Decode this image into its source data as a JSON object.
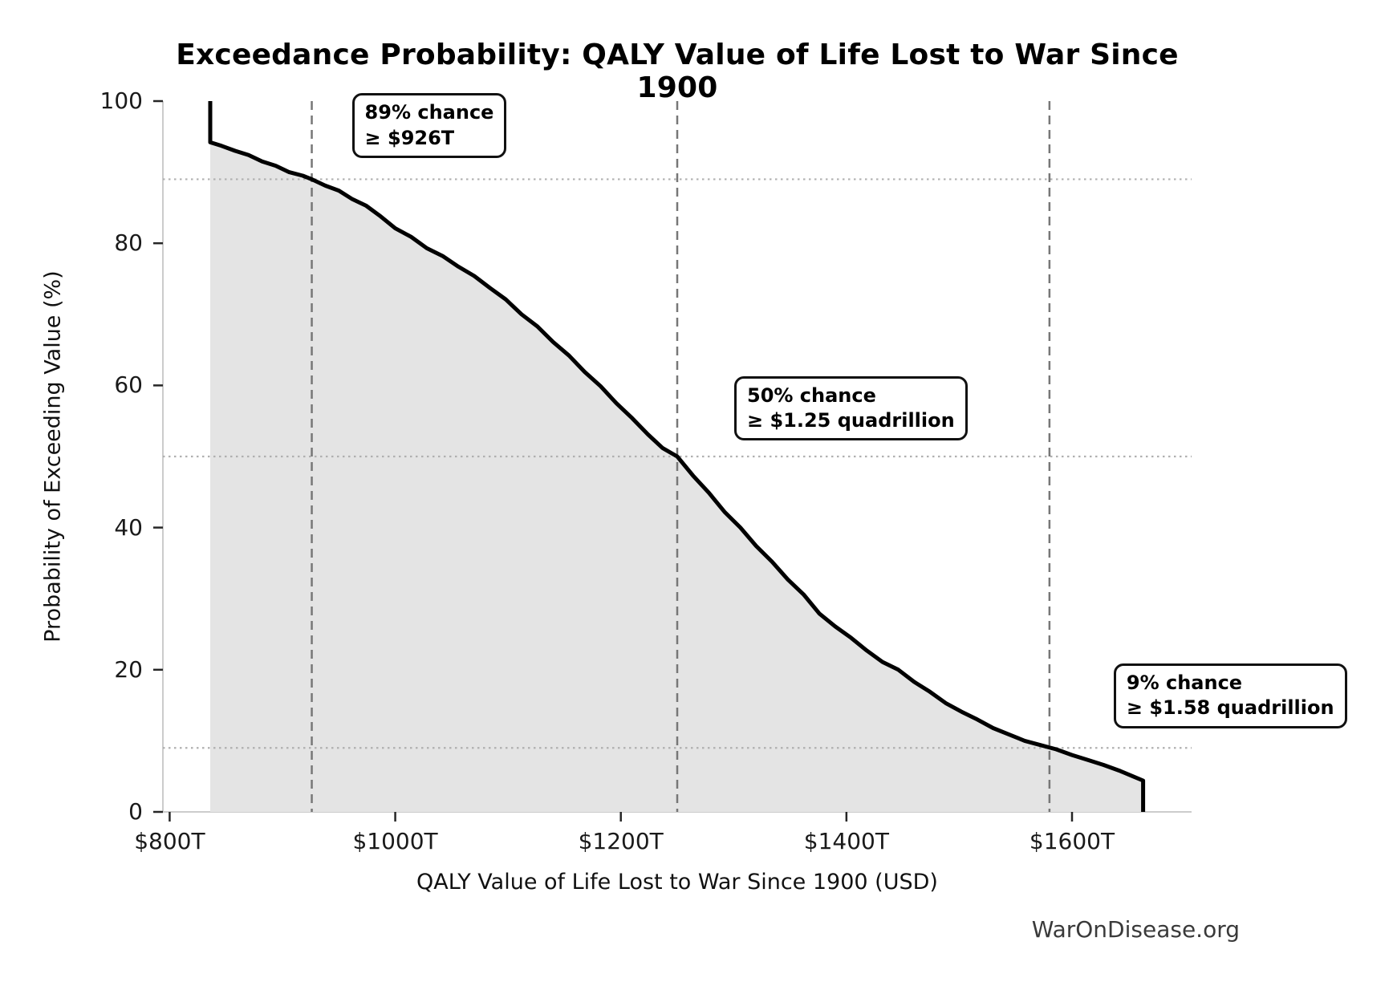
{
  "title": "Exceedance Probability: QALY Value of Life Lost to War Since 1900",
  "watermark": "WarOnDisease.org",
  "chart_data": {
    "type": "line",
    "title": "Exceedance Probability: QALY Value of Life Lost to War Since 1900",
    "xlabel": "QALY Value of Life Lost to War Since 1900 (USD)",
    "ylabel": "Probability of Exceeding Value (%)",
    "x_unit": "trillions of USD",
    "xlim": [
      794,
      1706
    ],
    "ylim": [
      0,
      100
    ],
    "grid": "off",
    "legend": "none",
    "x_ticks": [
      {
        "value": 800,
        "label": "$800T"
      },
      {
        "value": 1000,
        "label": "$1000T"
      },
      {
        "value": 1200,
        "label": "$1200T"
      },
      {
        "value": 1400,
        "label": "$1400T"
      },
      {
        "value": 1600,
        "label": "$1600T"
      }
    ],
    "y_ticks": [
      {
        "value": 0,
        "label": "0"
      },
      {
        "value": 20,
        "label": "20"
      },
      {
        "value": 40,
        "label": "40"
      },
      {
        "value": 60,
        "label": "60"
      },
      {
        "value": 80,
        "label": "80"
      },
      {
        "value": 100,
        "label": "100"
      }
    ],
    "curve_points_value_T_vs_prob_pct": [
      [
        836,
        100
      ],
      [
        836,
        94.2
      ],
      [
        846,
        93.7
      ],
      [
        858,
        93.0
      ],
      [
        870,
        92.4
      ],
      [
        882,
        91.5
      ],
      [
        894,
        90.9
      ],
      [
        906,
        90.0
      ],
      [
        918,
        89.5
      ],
      [
        926,
        89.0
      ],
      [
        938,
        88.1
      ],
      [
        950,
        87.4
      ],
      [
        962,
        86.2
      ],
      [
        974,
        85.3
      ],
      [
        986,
        83.9
      ],
      [
        1000,
        82.1
      ],
      [
        1014,
        80.9
      ],
      [
        1028,
        79.3
      ],
      [
        1042,
        78.2
      ],
      [
        1056,
        76.7
      ],
      [
        1070,
        75.4
      ],
      [
        1084,
        73.7
      ],
      [
        1098,
        72.1
      ],
      [
        1112,
        70.0
      ],
      [
        1126,
        68.3
      ],
      [
        1140,
        66.1
      ],
      [
        1154,
        64.2
      ],
      [
        1168,
        61.9
      ],
      [
        1182,
        59.9
      ],
      [
        1196,
        57.5
      ],
      [
        1210,
        55.4
      ],
      [
        1224,
        53.1
      ],
      [
        1237,
        51.2
      ],
      [
        1250,
        50.0
      ],
      [
        1264,
        47.3
      ],
      [
        1278,
        44.9
      ],
      [
        1292,
        42.2
      ],
      [
        1306,
        40.0
      ],
      [
        1320,
        37.4
      ],
      [
        1334,
        35.2
      ],
      [
        1348,
        32.7
      ],
      [
        1362,
        30.6
      ],
      [
        1376,
        27.9
      ],
      [
        1390,
        26.1
      ],
      [
        1404,
        24.5
      ],
      [
        1418,
        22.7
      ],
      [
        1432,
        21.1
      ],
      [
        1446,
        20.0
      ],
      [
        1460,
        18.3
      ],
      [
        1474,
        16.9
      ],
      [
        1488,
        15.3
      ],
      [
        1502,
        14.1
      ],
      [
        1516,
        13.0
      ],
      [
        1530,
        11.8
      ],
      [
        1544,
        10.9
      ],
      [
        1558,
        10.0
      ],
      [
        1572,
        9.4
      ],
      [
        1586,
        8.8
      ],
      [
        1600,
        8.0
      ],
      [
        1614,
        7.3
      ],
      [
        1628,
        6.6
      ],
      [
        1642,
        5.8
      ],
      [
        1654,
        5.0
      ],
      [
        1663,
        4.4
      ],
      [
        1663,
        0
      ]
    ],
    "reference_lines": {
      "dotted_horizontal_prob_pct": [
        89,
        50,
        9
      ],
      "dashed_vertical_value_T": [
        926,
        1250,
        1580
      ]
    },
    "annotations": [
      {
        "line1": "89% chance",
        "line2": "≥ $926T",
        "at_value_T": 926,
        "at_prob_pct": 89
      },
      {
        "line1": "50% chance",
        "line2": "≥ $1.25 quadrillion",
        "at_value_T": 1250,
        "at_prob_pct": 50
      },
      {
        "line1": "9% chance",
        "line2": "≥ $1.58 quadrillion",
        "at_value_T": 1580,
        "at_prob_pct": 9
      }
    ],
    "colors": {
      "curve": "#000000",
      "area_fill": "#e4e4e4",
      "dashed_line": "#777777",
      "dotted_line": "#b0b0b0",
      "spine": "#cccccc",
      "tick": "#262626",
      "watermark": "#3a3a3a"
    }
  }
}
